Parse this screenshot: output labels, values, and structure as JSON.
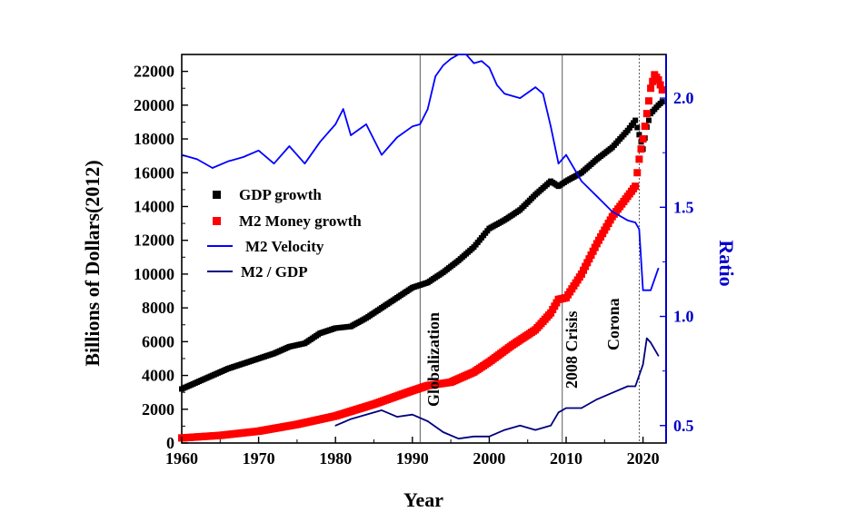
{
  "chart_data": {
    "type": "line",
    "title": "",
    "xlabel": "Year",
    "ylabel_left": "Billions of Dollars(2012)",
    "ylabel_right": "Ratio",
    "xlim": [
      1960,
      2023
    ],
    "ylim_left": [
      0,
      23000
    ],
    "ylim_right": [
      0.42,
      2.2
    ],
    "x_ticks": [
      1960,
      1970,
      1980,
      1990,
      2000,
      2010,
      2020
    ],
    "y_left_ticks": [
      0,
      2000,
      4000,
      6000,
      8000,
      10000,
      12000,
      14000,
      16000,
      18000,
      20000,
      22000
    ],
    "y_right_ticks": [
      "0.5",
      "1.0",
      "1.5",
      "2.0"
    ],
    "colors": {
      "gdp": "#000000",
      "m2": "#ff0000",
      "velocity": "#0000ff",
      "ratio": "#000080",
      "right_axis": "#0000cc"
    },
    "series": [
      {
        "name": "GDP growth",
        "axis": "left",
        "style": "square-markers",
        "x": [
          1960,
          1962,
          1964,
          1966,
          1968,
          1970,
          1972,
          1974,
          1976,
          1978,
          1980,
          1982,
          1984,
          1986,
          1988,
          1990,
          1992,
          1994,
          1996,
          1998,
          2000,
          2002,
          2004,
          2006,
          2008,
          2009,
          2010,
          2012,
          2014,
          2016,
          2018,
          2019,
          2020,
          2020.5,
          2021,
          2022,
          2022.5
        ],
        "values": [
          3200,
          3600,
          4000,
          4400,
          4700,
          5000,
          5300,
          5700,
          5900,
          6500,
          6800,
          6900,
          7400,
          8000,
          8600,
          9200,
          9500,
          10100,
          10800,
          11600,
          12700,
          13200,
          13800,
          14700,
          15500,
          15200,
          15500,
          16000,
          16800,
          17500,
          18500,
          19100,
          17400,
          18700,
          19500,
          20000,
          20200
        ]
      },
      {
        "name": "M2 Money growth",
        "axis": "left",
        "style": "square-markers",
        "x": [
          1960,
          1965,
          1970,
          1975,
          1980,
          1985,
          1990,
          1992,
          1995,
          1998,
          2000,
          2003,
          2006,
          2008,
          2009,
          2010,
          2012,
          2014,
          2016,
          2018,
          2019,
          2019.5,
          2020,
          2020.5,
          2021,
          2021.5,
          2022,
          2022.5
        ],
        "values": [
          300,
          450,
          700,
          1100,
          1600,
          2300,
          3100,
          3400,
          3600,
          4200,
          4800,
          5800,
          6700,
          7700,
          8500,
          8600,
          10000,
          11800,
          13400,
          14600,
          15200,
          16800,
          18000,
          19500,
          21000,
          21800,
          21500,
          20900
        ]
      },
      {
        "name": "M2 Velocity",
        "axis": "right",
        "style": "line",
        "x": [
          1960,
          1962,
          1964,
          1966,
          1968,
          1970,
          1972,
          1974,
          1976,
          1978,
          1980,
          1981,
          1982,
          1984,
          1986,
          1988,
          1990,
          1991,
          1992,
          1993,
          1994,
          1995,
          1996,
          1997,
          1998,
          1999,
          2000,
          2001,
          2002,
          2004,
          2006,
          2007,
          2008,
          2009,
          2010,
          2012,
          2014,
          2016,
          2018,
          2019,
          2019.5,
          2020,
          2021,
          2022
        ],
        "values": [
          1.74,
          1.72,
          1.68,
          1.71,
          1.73,
          1.76,
          1.7,
          1.78,
          1.7,
          1.8,
          1.88,
          1.95,
          1.83,
          1.88,
          1.74,
          1.82,
          1.87,
          1.88,
          1.95,
          2.1,
          2.15,
          2.18,
          2.2,
          2.2,
          2.16,
          2.17,
          2.14,
          2.06,
          2.02,
          2.0,
          2.05,
          2.02,
          1.87,
          1.7,
          1.74,
          1.62,
          1.55,
          1.48,
          1.44,
          1.43,
          1.4,
          1.12,
          1.12,
          1.22
        ]
      },
      {
        "name": "M2 / GDP",
        "axis": "right",
        "style": "line",
        "x": [
          1980,
          1982,
          1984,
          1986,
          1988,
          1990,
          1992,
          1994,
          1996,
          1998,
          2000,
          2002,
          2004,
          2006,
          2008,
          2009,
          2010,
          2012,
          2014,
          2016,
          2018,
          2019,
          2020,
          2020.5,
          2021,
          2022
        ],
        "values": [
          0.5,
          0.53,
          0.55,
          0.57,
          0.54,
          0.55,
          0.52,
          0.47,
          0.44,
          0.45,
          0.45,
          0.48,
          0.5,
          0.48,
          0.5,
          0.56,
          0.58,
          0.58,
          0.62,
          0.65,
          0.68,
          0.68,
          0.78,
          0.9,
          0.88,
          0.82
        ]
      }
    ],
    "annotations": [
      {
        "text": "Globalization",
        "x": 1991
      },
      {
        "text": "2008 Crisis",
        "x": 2009.5
      },
      {
        "text": "Corona",
        "x": 2019.5
      }
    ],
    "legend_position": "upper-left"
  }
}
